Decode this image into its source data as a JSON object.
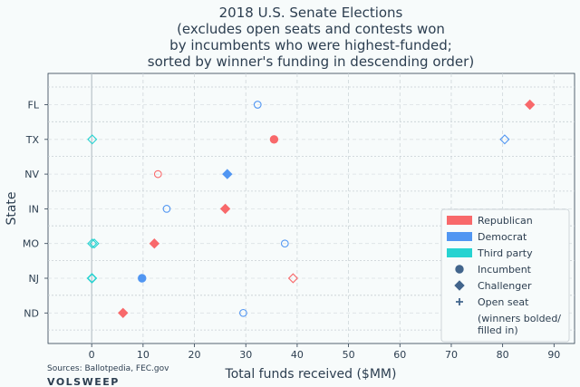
{
  "chart_data": {
    "type": "scatter",
    "title_lines": [
      "2018 U.S. Senate Elections",
      "(excludes open seats and contests won",
      "by incumbents who were highest-funded;",
      "sorted by winner's funding in descending order)"
    ],
    "xlabel": "Total funds received ($MM)",
    "ylabel": "State",
    "xlim": [
      -8.5,
      94
    ],
    "x_ticks": [
      0,
      10,
      20,
      30,
      40,
      50,
      60,
      70,
      80,
      90
    ],
    "categories": [
      "FL",
      "TX",
      "NV",
      "IN",
      "MO",
      "NJ",
      "ND"
    ],
    "grid": true,
    "legend_position": "lower-right",
    "colors": {
      "Republican": "#f8696b",
      "Democrat": "#5196f2",
      "Third party": "#26d3d1"
    },
    "legend": {
      "parties": [
        "Republican",
        "Democrat",
        "Third party"
      ],
      "markers": [
        "Incumbent",
        "Challenger",
        "Open seat"
      ],
      "note_lines": [
        "(winners bolded/",
        "filled in)"
      ]
    },
    "points": [
      {
        "state": "FL",
        "x": 85.3,
        "party": "Republican",
        "role": "Challenger",
        "winner": true
      },
      {
        "state": "FL",
        "x": 32.3,
        "party": "Democrat",
        "role": "Incumbent",
        "winner": false
      },
      {
        "state": "TX",
        "x": 35.5,
        "party": "Republican",
        "role": "Incumbent",
        "winner": true
      },
      {
        "state": "TX",
        "x": 80.4,
        "party": "Democrat",
        "role": "Challenger",
        "winner": false
      },
      {
        "state": "TX",
        "x": 0.1,
        "party": "Third party",
        "role": "Challenger",
        "winner": false
      },
      {
        "state": "NV",
        "x": 12.9,
        "party": "Republican",
        "role": "Incumbent",
        "winner": false
      },
      {
        "state": "NV",
        "x": 26.4,
        "party": "Democrat",
        "role": "Challenger",
        "winner": true
      },
      {
        "state": "IN",
        "x": 14.6,
        "party": "Democrat",
        "role": "Incumbent",
        "winner": false
      },
      {
        "state": "IN",
        "x": 26.0,
        "party": "Republican",
        "role": "Challenger",
        "winner": true
      },
      {
        "state": "MO",
        "x": 37.6,
        "party": "Democrat",
        "role": "Incumbent",
        "winner": false
      },
      {
        "state": "MO",
        "x": 12.2,
        "party": "Republican",
        "role": "Challenger",
        "winner": true
      },
      {
        "state": "MO",
        "x": 0.1,
        "party": "Third party",
        "role": "Challenger",
        "winner": false
      },
      {
        "state": "MO",
        "x": 0.5,
        "party": "Third party",
        "role": "Challenger",
        "winner": false
      },
      {
        "state": "NJ",
        "x": 9.8,
        "party": "Democrat",
        "role": "Incumbent",
        "winner": true
      },
      {
        "state": "NJ",
        "x": 39.2,
        "party": "Republican",
        "role": "Challenger",
        "winner": false
      },
      {
        "state": "NJ",
        "x": 0.0,
        "party": "Third party",
        "role": "Challenger",
        "winner": false
      },
      {
        "state": "NJ",
        "x": 0.1,
        "party": "Third party",
        "role": "Challenger",
        "winner": false
      },
      {
        "state": "ND",
        "x": 29.5,
        "party": "Democrat",
        "role": "Incumbent",
        "winner": false
      },
      {
        "state": "ND",
        "x": 6.1,
        "party": "Republican",
        "role": "Challenger",
        "winner": true
      }
    ]
  },
  "footer": {
    "sources": "Sources: Ballotpedia, FEC.gov",
    "brand": "VOLSWEEP"
  }
}
